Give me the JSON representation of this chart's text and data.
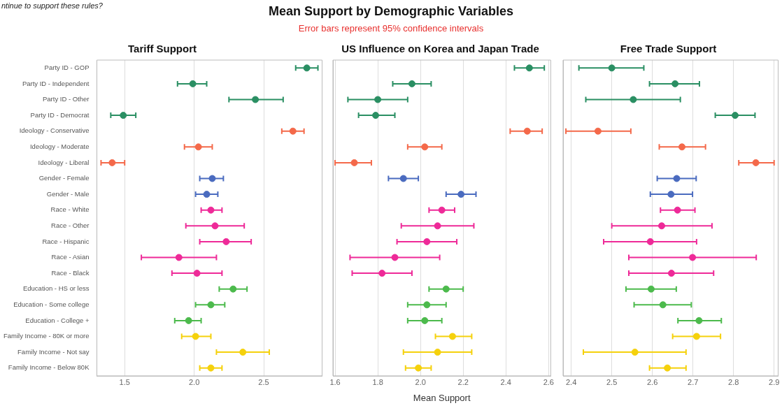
{
  "chart_data": [
    {
      "type": "other",
      "title": "Mean Support by Demographic Variables",
      "subtitle": "Error bars represent 95% confidence intervals",
      "annotations": [
        "ntinue to support these rules?"
      ]
    },
    {
      "type": "scatter",
      "orientation": "horizontal",
      "title": "Tariff Support",
      "marker": "circle",
      "grid": "x",
      "categories": [
        "Party ID - GOP",
        "Party ID - Independent",
        "Party ID - Other",
        "Party ID - Democrat",
        "Ideology - Conservative",
        "Ideology - Moderate",
        "Ideology - Liberal",
        "Gender - Female",
        "Gender - Male",
        "Race - White",
        "Race - Other",
        "Race - Hispanic",
        "Race - Asian",
        "Race - Black",
        "Education - HS or less",
        "Education - Some college",
        "Education - College +",
        "Family Income - 80K or more",
        "Family Income - Not say",
        "Family Income - Below 80K"
      ],
      "values": [
        2.81,
        1.99,
        2.44,
        1.49,
        2.71,
        2.03,
        1.41,
        2.13,
        2.09,
        2.12,
        2.15,
        2.23,
        1.89,
        2.02,
        2.28,
        2.12,
        1.96,
        2.01,
        2.35,
        2.12
      ],
      "errors": [
        [
          2.73,
          2.89
        ],
        [
          1.88,
          2.09
        ],
        [
          2.25,
          2.64
        ],
        [
          1.4,
          1.58
        ],
        [
          2.63,
          2.79
        ],
        [
          1.93,
          2.13
        ],
        [
          1.33,
          1.5
        ],
        [
          2.04,
          2.21
        ],
        [
          2.01,
          2.17
        ],
        [
          2.05,
          2.2
        ],
        [
          1.94,
          2.36
        ],
        [
          2.04,
          2.41
        ],
        [
          1.62,
          2.16
        ],
        [
          1.84,
          2.2
        ],
        [
          2.18,
          2.38
        ],
        [
          2.01,
          2.22
        ],
        [
          1.86,
          2.05
        ],
        [
          1.91,
          2.12
        ],
        [
          2.16,
          2.54
        ],
        [
          2.04,
          2.2
        ]
      ],
      "colors": [
        "#2a8f63",
        "#2a8f63",
        "#2a8f63",
        "#2a8f63",
        "#f4694a",
        "#f4694a",
        "#f4694a",
        "#4a6bbf",
        "#4a6bbf",
        "#ee2a98",
        "#ee2a98",
        "#ee2a98",
        "#ee2a98",
        "#ee2a98",
        "#4cba4c",
        "#4cba4c",
        "#4cba4c",
        "#f5d10c",
        "#f5d10c",
        "#f5d10c"
      ],
      "xlim": [
        1.3,
        2.92
      ],
      "xticks": [
        1.5,
        {
          "value": 2,
          "label": "2.0"
        },
        2.5
      ]
    },
    {
      "type": "scatter",
      "orientation": "horizontal",
      "title": "US Influence on Korea and Japan Trade",
      "xlabel": "Mean Support",
      "marker": "circle",
      "grid": "x",
      "tick_labels": "x",
      "categories": [
        null,
        null,
        null,
        null,
        null,
        null,
        null,
        null,
        null,
        null,
        null,
        null,
        null,
        null,
        null,
        null,
        null,
        null,
        null,
        null
      ],
      "values": [
        2.51,
        1.96,
        1.8,
        1.79,
        2.5,
        2.02,
        1.69,
        1.92,
        2.19,
        2.1,
        2.08,
        2.03,
        1.88,
        1.82,
        2.12,
        2.03,
        2.02,
        2.15,
        2.08,
        1.99
      ],
      "errors": [
        [
          2.44,
          2.58
        ],
        [
          1.87,
          2.05
        ],
        [
          1.66,
          1.94
        ],
        [
          1.71,
          1.88
        ],
        [
          2.42,
          2.57
        ],
        [
          1.94,
          2.1
        ],
        [
          1.6,
          1.77
        ],
        [
          1.85,
          1.99
        ],
        [
          2.12,
          2.26
        ],
        [
          2.04,
          2.16
        ],
        [
          1.91,
          2.25
        ],
        [
          1.89,
          2.17
        ],
        [
          1.67,
          2.09
        ],
        [
          1.68,
          1.96
        ],
        [
          2.04,
          2.2
        ],
        [
          1.94,
          2.12
        ],
        [
          1.94,
          2.1
        ],
        [
          2.07,
          2.24
        ],
        [
          1.92,
          2.24
        ],
        [
          1.93,
          2.05
        ]
      ],
      "colors": [
        "#2a8f63",
        "#2a8f63",
        "#2a8f63",
        "#2a8f63",
        "#f4694a",
        "#f4694a",
        "#f4694a",
        "#4a6bbf",
        "#4a6bbf",
        "#ee2a98",
        "#ee2a98",
        "#ee2a98",
        "#ee2a98",
        "#ee2a98",
        "#4cba4c",
        "#4cba4c",
        "#4cba4c",
        "#f5d10c",
        "#f5d10c",
        "#f5d10c"
      ],
      "xlim": [
        1.59,
        2.61
      ],
      "xticks": [
        1.6,
        1.8,
        {
          "value": 2,
          "label": "2.0"
        },
        2.2,
        2.4,
        2.6
      ]
    },
    {
      "type": "scatter",
      "orientation": "horizontal",
      "title": "Free Trade Support",
      "marker": "circle",
      "grid": "x",
      "tick_labels": "x",
      "categories": [
        null,
        null,
        null,
        null,
        null,
        null,
        null,
        null,
        null,
        null,
        null,
        null,
        null,
        null,
        null,
        null,
        null,
        null,
        null,
        null
      ],
      "values": [
        2.5,
        2.656,
        2.553,
        2.804,
        2.466,
        2.673,
        2.855,
        2.66,
        2.646,
        2.662,
        2.623,
        2.595,
        2.699,
        2.647,
        2.597,
        2.626,
        2.715,
        2.709,
        2.557,
        2.637
      ],
      "errors": [
        [
          2.419,
          2.579
        ],
        [
          2.593,
          2.716
        ],
        [
          2.436,
          2.669
        ],
        [
          2.755,
          2.853
        ],
        [
          2.387,
          2.547
        ],
        [
          2.617,
          2.731
        ],
        [
          2.813,
          2.9
        ],
        [
          2.612,
          2.708
        ],
        [
          2.595,
          2.699
        ],
        [
          2.62,
          2.705
        ],
        [
          2.5,
          2.747
        ],
        [
          2.48,
          2.709
        ],
        [
          2.542,
          2.856
        ],
        [
          2.542,
          2.751
        ],
        [
          2.535,
          2.659
        ],
        [
          2.555,
          2.696
        ],
        [
          2.663,
          2.77
        ],
        [
          2.65,
          2.768
        ],
        [
          2.43,
          2.683
        ],
        [
          2.593,
          2.683
        ]
      ],
      "colors": [
        "#2a8f63",
        "#2a8f63",
        "#2a8f63",
        "#2a8f63",
        "#f4694a",
        "#f4694a",
        "#f4694a",
        "#4a6bbf",
        "#4a6bbf",
        "#ee2a98",
        "#ee2a98",
        "#ee2a98",
        "#ee2a98",
        "#ee2a98",
        "#4cba4c",
        "#4cba4c",
        "#4cba4c",
        "#f5d10c",
        "#f5d10c",
        "#f5d10c"
      ],
      "xlim": [
        2.38,
        2.91
      ],
      "xticks": [
        2.4,
        2.5,
        2.6,
        2.7,
        2.8,
        2.9
      ]
    }
  ]
}
